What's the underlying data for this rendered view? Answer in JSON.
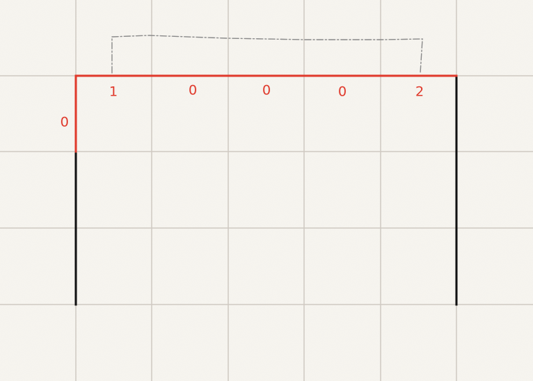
{
  "puzzle": {
    "top_clues": [
      "1",
      "0",
      "0",
      "0",
      "2"
    ],
    "left_clues": [
      "0"
    ],
    "colors": {
      "paper": "#f7f5f0",
      "grid": "#cfcac2",
      "edge_active": "#e03a2c",
      "edge_filled": "#111111",
      "link": "#8a8a8a"
    }
  }
}
